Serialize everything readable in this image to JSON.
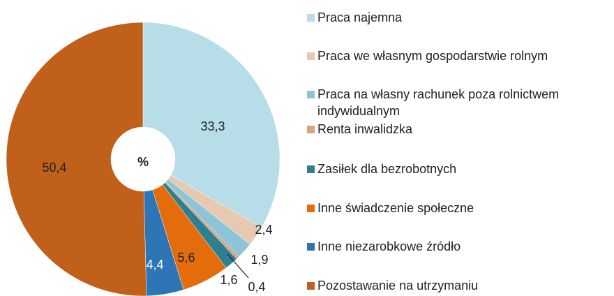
{
  "chart_data": {
    "type": "donut",
    "categories": [
      "Praca najemna",
      "Praca we własnym gospodarstwie rolnym",
      "Praca na własny rachunek poza rolnictwem indywidualnym",
      "Renta inwalidzka",
      "Zasiłek dla bezrobotnych",
      "Inne świadczenie społeczne",
      "Inne niezarobkowe źródło",
      "Pozostawanie na utrzymaniu"
    ],
    "values": [
      33.3,
      2.4,
      1.9,
      0.4,
      1.6,
      5.6,
      4.4,
      50.4
    ],
    "value_labels": [
      "33,3",
      "2,4",
      "1,9",
      "0,4",
      "1,6",
      "5,6",
      "4,4",
      "50,4"
    ],
    "colors": [
      "#b7dde8",
      "#e6c9b0",
      "#8cc4d8",
      "#d9a57a",
      "#2f7f93",
      "#e46c0a",
      "#2e75b6",
      "#c0601a"
    ],
    "center_label": "%",
    "legend": "right"
  }
}
